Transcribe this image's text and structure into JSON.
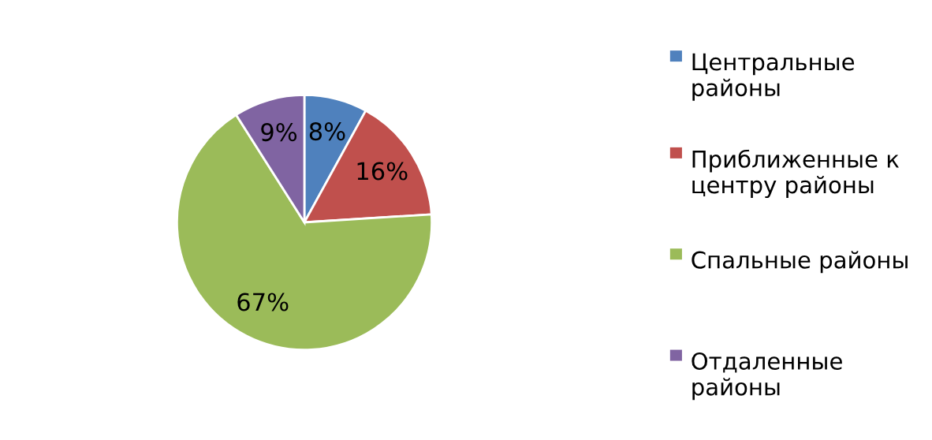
{
  "chart_data": {
    "type": "pie",
    "categories": [
      "Центральные районы",
      "Приближенные к центру районы",
      "Спальные районы",
      "Отдаленные районы"
    ],
    "values": [
      8,
      16,
      67,
      9
    ],
    "colors": [
      "#4f81bd",
      "#c0504d",
      "#9bbb59",
      "#8064a2"
    ],
    "value_labels": [
      "8%",
      "16%",
      "67%",
      "9%"
    ],
    "legend": "right"
  }
}
